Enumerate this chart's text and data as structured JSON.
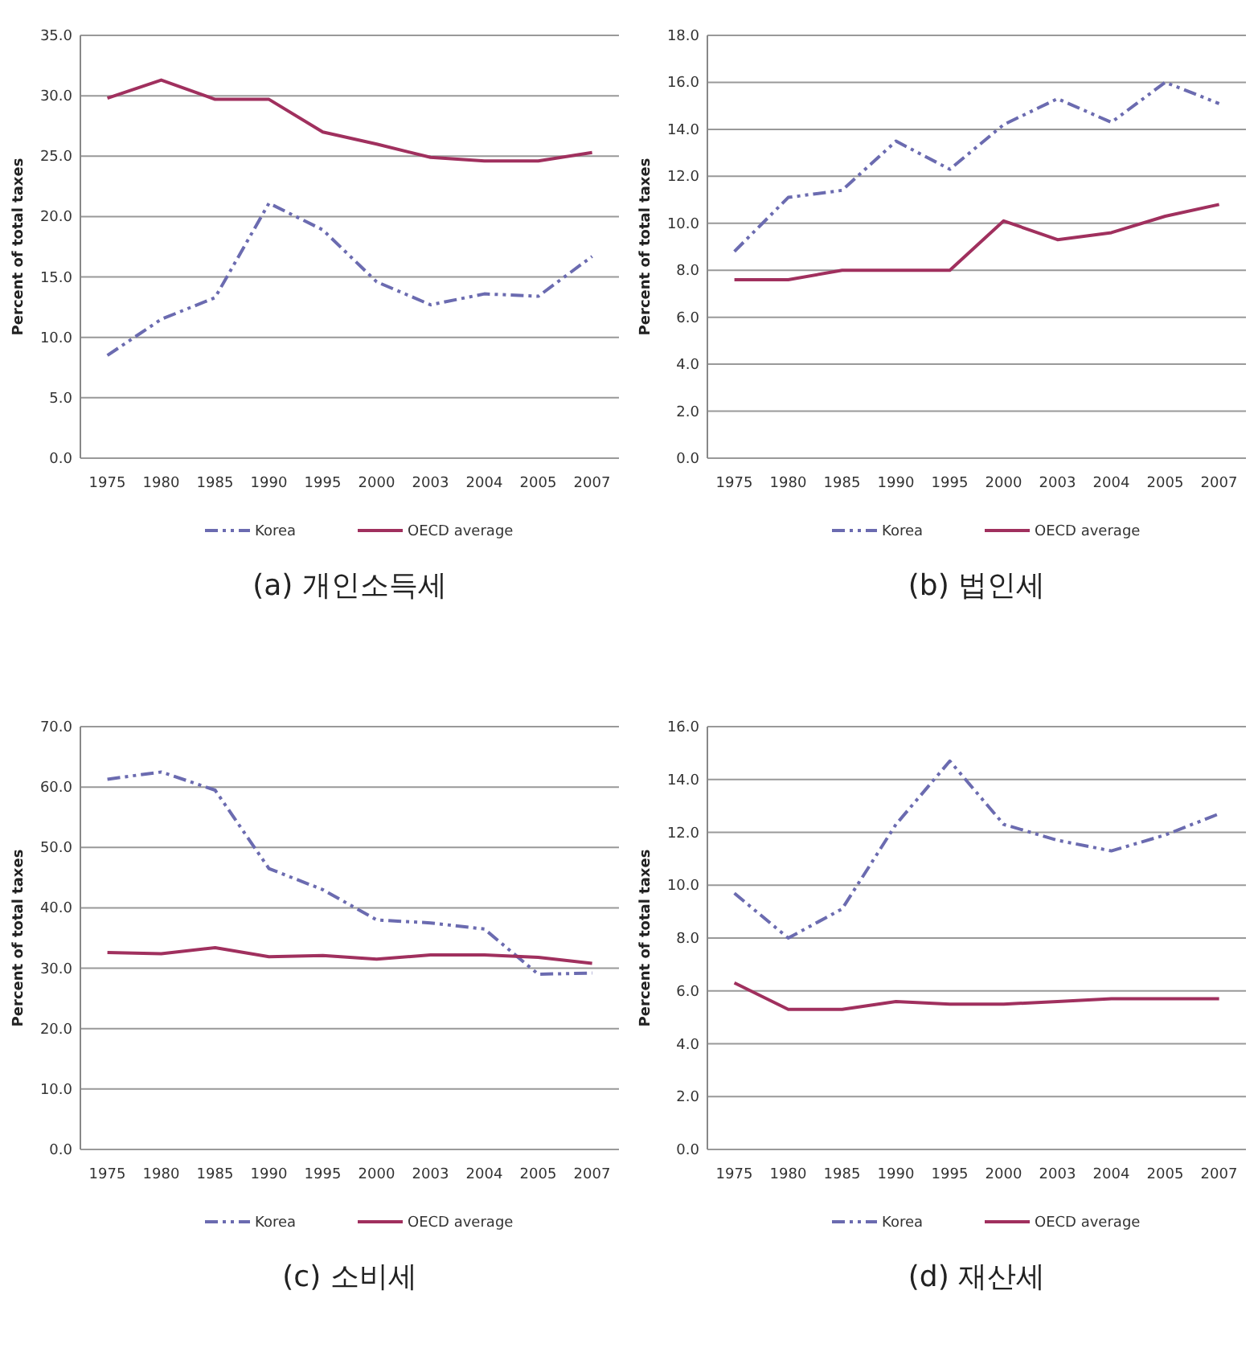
{
  "chart_data": [
    {
      "type": "line",
      "title": "(a) 개인소득세",
      "ylabel": "Percent of total taxes",
      "categories": [
        "1975",
        "1980",
        "1985",
        "1990",
        "1995",
        "2000",
        "2003",
        "2004",
        "2005",
        "2007"
      ],
      "series": [
        {
          "name": "Korea",
          "color": "#6b6bb0",
          "line_style": "dashed",
          "values": [
            8.5,
            11.5,
            13.3,
            21.1,
            18.9,
            14.6,
            12.7,
            13.6,
            13.4,
            16.7
          ]
        },
        {
          "name": "OECD average",
          "color": "#a0305e",
          "line_style": "solid",
          "values": [
            29.8,
            31.3,
            29.7,
            29.7,
            27.0,
            26.0,
            24.9,
            24.6,
            24.6,
            25.3
          ]
        }
      ],
      "ylim": [
        0,
        35
      ],
      "yticks": [
        {
          "value": 0,
          "label": "0.0"
        },
        {
          "value": 5,
          "label": "5.0"
        },
        {
          "value": 10,
          "label": "10.0"
        },
        {
          "value": 15,
          "label": "15.0"
        },
        {
          "value": 20,
          "label": "20.0"
        },
        {
          "value": 25,
          "label": "25.0"
        },
        {
          "value": 30,
          "label": "30.0"
        },
        {
          "value": 35,
          "label": "35.0"
        }
      ],
      "grid": "y",
      "legend": "bottom"
    },
    {
      "type": "line",
      "title": "(b) 법인세",
      "ylabel": "Percent of total taxes",
      "categories": [
        "1975",
        "1980",
        "1985",
        "1990",
        "1995",
        "2000",
        "2003",
        "2004",
        "2005",
        "2007"
      ],
      "series": [
        {
          "name": "Korea",
          "color": "#6b6bb0",
          "line_style": "dashed",
          "values": [
            8.8,
            11.1,
            11.4,
            13.5,
            12.3,
            14.2,
            15.3,
            14.3,
            16.0,
            15.1
          ]
        },
        {
          "name": "OECD average",
          "color": "#a0305e",
          "line_style": "solid",
          "values": [
            7.6,
            7.6,
            8.0,
            8.0,
            8.0,
            10.1,
            9.3,
            9.6,
            10.3,
            10.8
          ]
        }
      ],
      "ylim": [
        0,
        18
      ],
      "yticks": [
        {
          "value": 0,
          "label": "0.0"
        },
        {
          "value": 2,
          "label": "2.0"
        },
        {
          "value": 4,
          "label": "4.0"
        },
        {
          "value": 6,
          "label": "6.0"
        },
        {
          "value": 8,
          "label": "8.0"
        },
        {
          "value": 10,
          "label": "10.0"
        },
        {
          "value": 12,
          "label": "12.0"
        },
        {
          "value": 14,
          "label": "14.0"
        },
        {
          "value": 16,
          "label": "16.0"
        },
        {
          "value": 18,
          "label": "18.0"
        }
      ],
      "grid": "y",
      "legend": "bottom"
    },
    {
      "type": "line",
      "title": "(c) 소비세",
      "ylabel": "Percent of total taxes",
      "categories": [
        "1975",
        "1980",
        "1985",
        "1990",
        "1995",
        "2000",
        "2003",
        "2004",
        "2005",
        "2007"
      ],
      "series": [
        {
          "name": "Korea",
          "color": "#6b6bb0",
          "line_style": "dashed",
          "values": [
            61.3,
            62.5,
            59.5,
            46.5,
            43.0,
            38.0,
            37.5,
            36.5,
            29.0,
            29.2
          ]
        },
        {
          "name": "OECD average",
          "color": "#a0305e",
          "line_style": "solid",
          "values": [
            32.6,
            32.4,
            33.4,
            31.9,
            32.1,
            31.5,
            32.2,
            32.2,
            31.8,
            30.8
          ]
        }
      ],
      "ylim": [
        0,
        70
      ],
      "yticks": [
        {
          "value": 0,
          "label": "0.0"
        },
        {
          "value": 10,
          "label": "10.0"
        },
        {
          "value": 20,
          "label": "20.0"
        },
        {
          "value": 30,
          "label": "30.0"
        },
        {
          "value": 40,
          "label": "40.0"
        },
        {
          "value": 50,
          "label": "50.0"
        },
        {
          "value": 60,
          "label": "60.0"
        },
        {
          "value": 70,
          "label": "70.0"
        }
      ],
      "grid": "y",
      "legend": "bottom"
    },
    {
      "type": "line",
      "title": "(d) 재산세",
      "ylabel": "Percent of total taxes",
      "categories": [
        "1975",
        "1980",
        "1985",
        "1990",
        "1995",
        "2000",
        "2003",
        "2004",
        "2005",
        "2007"
      ],
      "series": [
        {
          "name": "Korea",
          "color": "#6b6bb0",
          "line_style": "dashed",
          "values": [
            9.7,
            8.0,
            9.1,
            12.3,
            14.7,
            12.3,
            11.7,
            11.3,
            11.9,
            12.7
          ]
        },
        {
          "name": "OECD average",
          "color": "#a0305e",
          "line_style": "solid",
          "values": [
            6.3,
            5.3,
            5.3,
            5.6,
            5.5,
            5.5,
            5.6,
            5.7,
            5.7,
            5.7
          ]
        }
      ],
      "ylim": [
        0,
        16
      ],
      "yticks": [
        {
          "value": 0,
          "label": "0.0"
        },
        {
          "value": 2,
          "label": "2.0"
        },
        {
          "value": 4,
          "label": "4.0"
        },
        {
          "value": 6,
          "label": "6.0"
        },
        {
          "value": 8,
          "label": "8.0"
        },
        {
          "value": 10,
          "label": "10.0"
        },
        {
          "value": 12,
          "label": "12.0"
        },
        {
          "value": 14,
          "label": "14.0"
        },
        {
          "value": 16,
          "label": "16.0"
        }
      ],
      "grid": "y",
      "legend": "bottom"
    }
  ]
}
